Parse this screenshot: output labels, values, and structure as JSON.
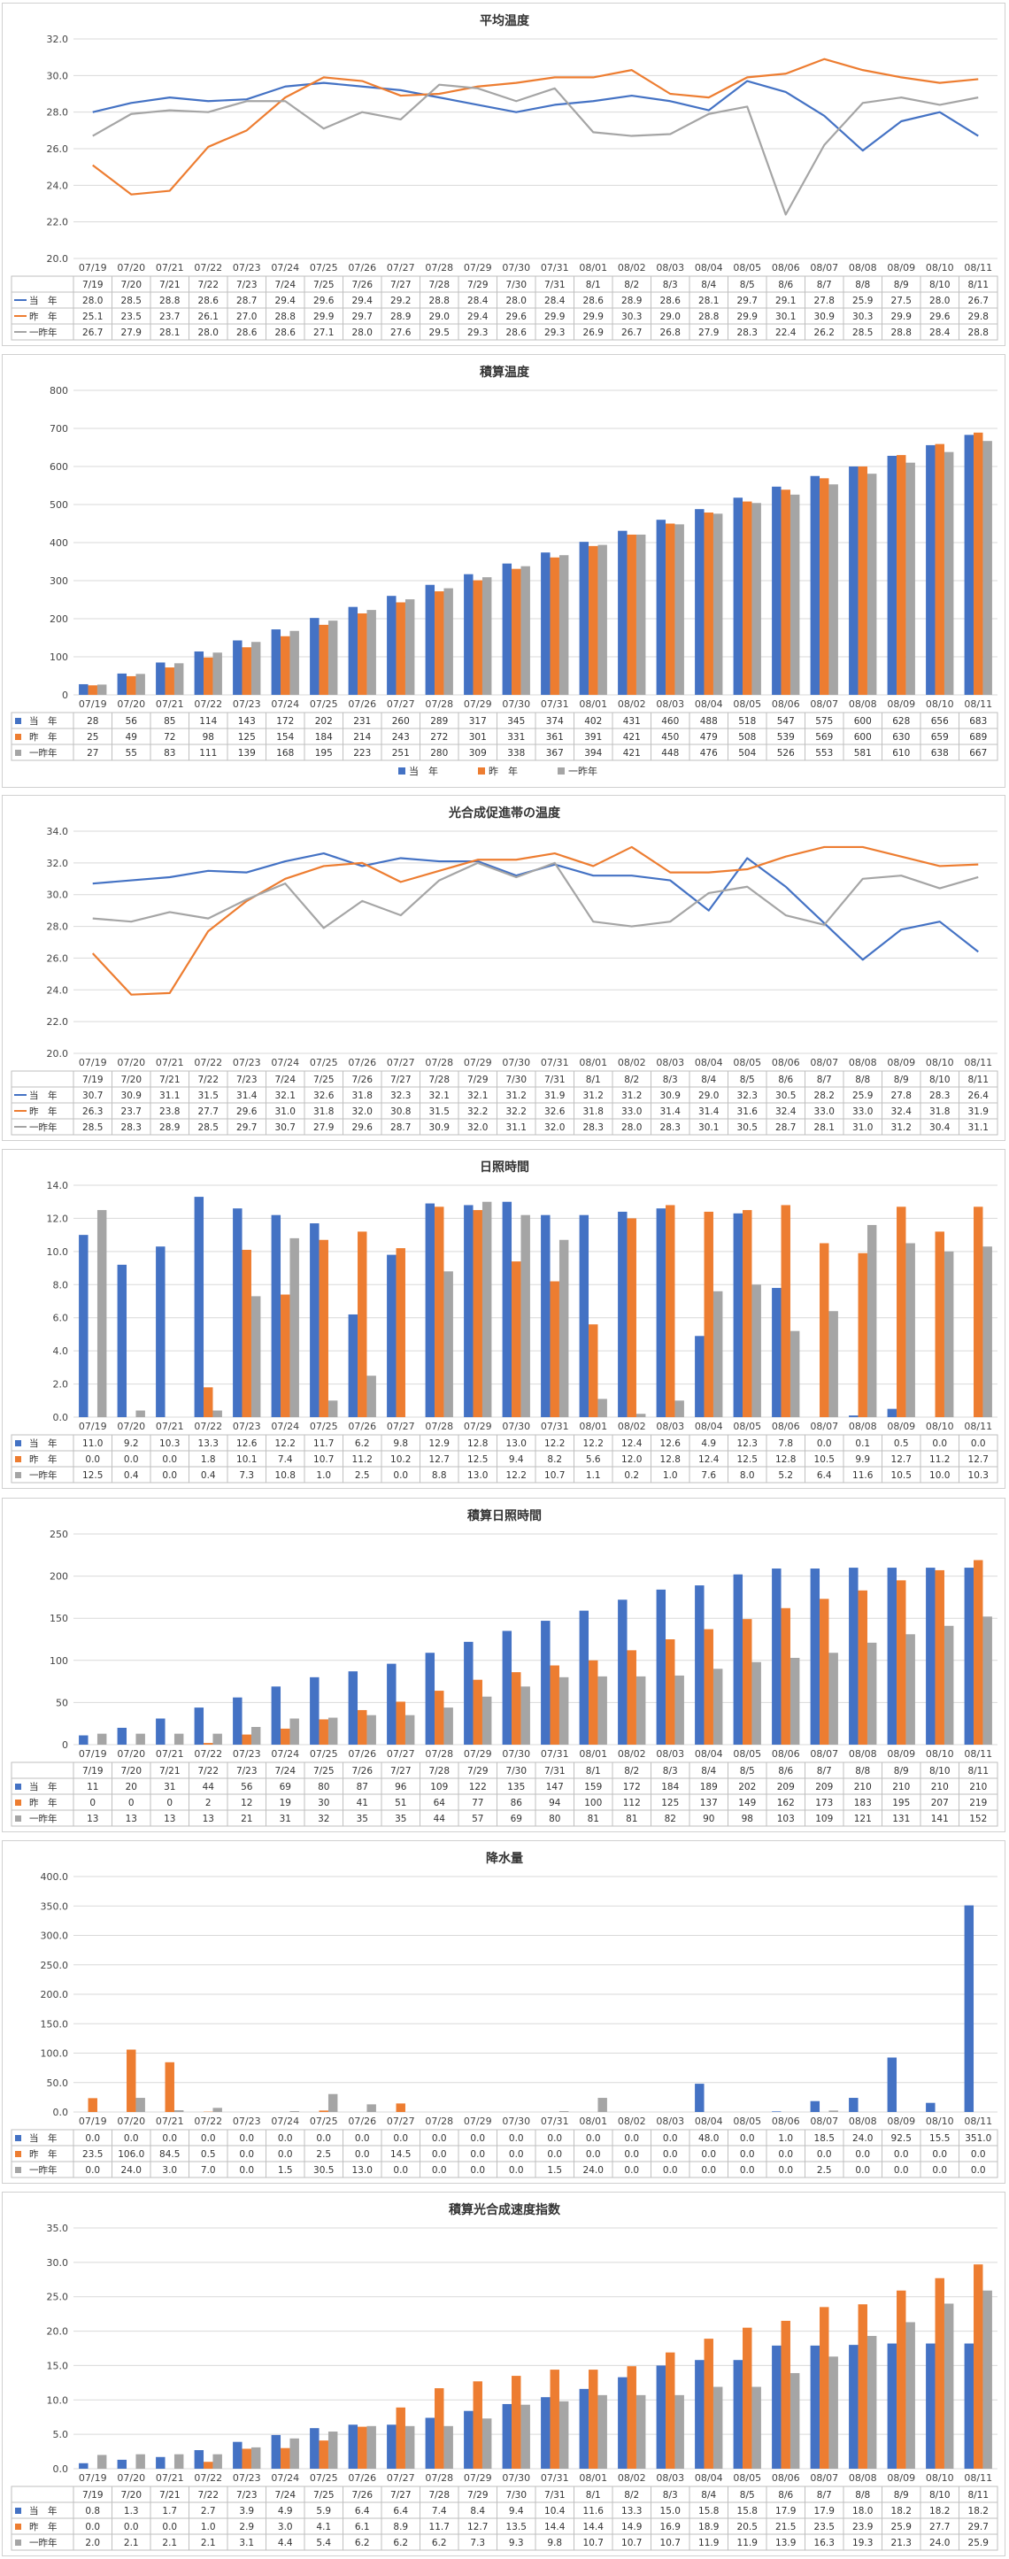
{
  "colors": {
    "current": "#4472C4",
    "last": "#ED7D31",
    "twoyears": "#A5A5A5",
    "grid": "#D9D9D9"
  },
  "legend_names": [
    "当　年",
    "昨　年",
    "一昨年"
  ],
  "axis_dates": [
    "07/19",
    "07/20",
    "07/21",
    "07/22",
    "07/23",
    "07/24",
    "07/25",
    "07/26",
    "07/27",
    "07/28",
    "07/29",
    "07/30",
    "07/31",
    "08/01",
    "08/02",
    "08/03",
    "08/04",
    "08/05",
    "08/06",
    "08/07",
    "08/08",
    "08/09",
    "08/10",
    "08/11"
  ],
  "table_dates": [
    "7/19",
    "7/20",
    "7/21",
    "7/22",
    "7/23",
    "7/24",
    "7/25",
    "7/26",
    "7/27",
    "7/28",
    "7/29",
    "7/30",
    "7/31",
    "8/1",
    "8/2",
    "8/3",
    "8/4",
    "8/5",
    "8/6",
    "8/7",
    "8/8",
    "8/9",
    "8/10",
    "8/11"
  ],
  "chart_data": [
    {
      "id": "avg-temp",
      "type": "line",
      "title": "平均温度",
      "ylim": [
        20,
        32
      ],
      "yticks": [
        20.0,
        22.0,
        24.0,
        26.0,
        28.0,
        30.0,
        32.0
      ],
      "decimals": 1,
      "table_header_row": true,
      "show_bottom_legend": false,
      "series": [
        {
          "name": "当　年",
          "values": [
            28.0,
            28.5,
            28.8,
            28.6,
            28.7,
            29.4,
            29.6,
            29.4,
            29.2,
            28.8,
            28.4,
            28.0,
            28.4,
            28.6,
            28.9,
            28.6,
            28.1,
            29.7,
            29.1,
            27.8,
            25.9,
            27.5,
            28.0,
            26.7
          ]
        },
        {
          "name": "昨　年",
          "values": [
            25.1,
            23.5,
            23.7,
            26.1,
            27.0,
            28.8,
            29.9,
            29.7,
            28.9,
            29.0,
            29.4,
            29.6,
            29.9,
            29.9,
            30.3,
            29.0,
            28.8,
            29.9,
            30.1,
            30.9,
            30.3,
            29.9,
            29.6,
            29.8
          ]
        },
        {
          "name": "一昨年",
          "values": [
            26.7,
            27.9,
            28.1,
            28.0,
            28.6,
            28.6,
            27.1,
            28.0,
            27.6,
            29.5,
            29.3,
            28.6,
            29.3,
            26.9,
            26.7,
            26.8,
            27.9,
            28.3,
            22.4,
            26.2,
            28.5,
            28.8,
            28.4,
            28.8
          ]
        }
      ]
    },
    {
      "id": "cum-temp",
      "type": "bar",
      "title": "積算温度",
      "ylim": [
        0,
        800
      ],
      "yticks": [
        0,
        100,
        200,
        300,
        400,
        500,
        600,
        700,
        800
      ],
      "decimals": 0,
      "table_header_row": false,
      "show_bottom_legend": true,
      "series": [
        {
          "name": "当　年",
          "values": [
            28,
            56,
            85,
            114,
            143,
            172,
            202,
            231,
            260,
            289,
            317,
            345,
            374,
            402,
            431,
            460,
            488,
            518,
            547,
            575,
            600,
            628,
            656,
            683
          ]
        },
        {
          "name": "昨　年",
          "values": [
            25,
            49,
            72,
            98,
            125,
            154,
            184,
            214,
            243,
            272,
            301,
            331,
            361,
            391,
            421,
            450,
            479,
            508,
            539,
            569,
            600,
            630,
            659,
            689
          ]
        },
        {
          "name": "一昨年",
          "values": [
            27,
            55,
            83,
            111,
            139,
            168,
            195,
            223,
            251,
            280,
            309,
            338,
            367,
            394,
            421,
            448,
            476,
            504,
            526,
            553,
            581,
            610,
            638,
            667
          ]
        }
      ]
    },
    {
      "id": "photo-temp",
      "type": "line",
      "title": "光合成促進帯の温度",
      "ylim": [
        20,
        34
      ],
      "yticks": [
        20.0,
        22.0,
        24.0,
        26.0,
        28.0,
        30.0,
        32.0,
        34.0
      ],
      "decimals": 1,
      "table_header_row": true,
      "show_bottom_legend": false,
      "series": [
        {
          "name": "当　年",
          "values": [
            30.7,
            30.9,
            31.1,
            31.5,
            31.4,
            32.1,
            32.6,
            31.8,
            32.3,
            32.1,
            32.1,
            31.2,
            31.9,
            31.2,
            31.2,
            30.9,
            29.0,
            32.3,
            30.5,
            28.2,
            25.9,
            27.8,
            28.3,
            26.4
          ]
        },
        {
          "name": "昨　年",
          "values": [
            26.3,
            23.7,
            23.8,
            27.7,
            29.6,
            31.0,
            31.8,
            32.0,
            30.8,
            31.5,
            32.2,
            32.2,
            32.6,
            31.8,
            33.0,
            31.4,
            31.4,
            31.6,
            32.4,
            33.0,
            33.0,
            32.4,
            31.8,
            31.9
          ]
        },
        {
          "name": "一昨年",
          "values": [
            28.5,
            28.3,
            28.9,
            28.5,
            29.7,
            30.7,
            27.9,
            29.6,
            28.7,
            30.9,
            32.0,
            31.1,
            32.0,
            28.3,
            28.0,
            28.3,
            30.1,
            30.5,
            28.7,
            28.1,
            31.0,
            31.2,
            30.4,
            31.1
          ]
        }
      ]
    },
    {
      "id": "sunshine",
      "type": "bar",
      "title": "日照時間",
      "ylim": [
        0,
        14
      ],
      "yticks": [
        0.0,
        2.0,
        4.0,
        6.0,
        8.0,
        10.0,
        12.0,
        14.0
      ],
      "decimals": 1,
      "table_header_row": false,
      "show_bottom_legend": false,
      "series": [
        {
          "name": "当　年",
          "values": [
            11.0,
            9.2,
            10.3,
            13.3,
            12.6,
            12.2,
            11.7,
            6.2,
            9.8,
            12.9,
            12.8,
            13.0,
            12.2,
            12.2,
            12.4,
            12.6,
            4.9,
            12.3,
            7.8,
            0.0,
            0.1,
            0.5,
            0.0,
            0.0
          ]
        },
        {
          "name": "昨　年",
          "values": [
            0.0,
            0.0,
            0.0,
            1.8,
            10.1,
            7.4,
            10.7,
            11.2,
            10.2,
            12.7,
            12.5,
            9.4,
            8.2,
            5.6,
            12.0,
            12.8,
            12.4,
            12.5,
            12.8,
            10.5,
            9.9,
            12.7,
            11.2,
            12.7
          ]
        },
        {
          "name": "一昨年",
          "values": [
            12.5,
            0.4,
            0.0,
            0.4,
            7.3,
            10.8,
            1.0,
            2.5,
            0.0,
            8.8,
            13.0,
            12.2,
            10.7,
            1.1,
            0.2,
            1.0,
            7.6,
            8.0,
            5.2,
            6.4,
            11.6,
            10.5,
            10.0,
            10.3
          ]
        }
      ]
    },
    {
      "id": "cum-sunshine",
      "type": "bar",
      "title": "積算日照時間",
      "ylim": [
        0,
        250
      ],
      "yticks": [
        0,
        50,
        100,
        150,
        200,
        250
      ],
      "decimals": 0,
      "table_header_row": true,
      "show_bottom_legend": false,
      "series": [
        {
          "name": "当　年",
          "values": [
            11,
            20,
            31,
            44,
            56,
            69,
            80,
            87,
            96,
            109,
            122,
            135,
            147,
            159,
            172,
            184,
            189,
            202,
            209,
            209,
            210,
            210,
            210,
            210
          ]
        },
        {
          "name": "昨　年",
          "values": [
            0,
            0,
            0,
            2,
            12,
            19,
            30,
            41,
            51,
            64,
            77,
            86,
            94,
            100,
            112,
            125,
            137,
            149,
            162,
            173,
            183,
            195,
            207,
            219
          ]
        },
        {
          "name": "一昨年",
          "values": [
            13,
            13,
            13,
            13,
            21,
            31,
            32,
            35,
            35,
            44,
            57,
            69,
            80,
            81,
            81,
            82,
            90,
            98,
            103,
            109,
            121,
            131,
            141,
            152
          ]
        }
      ]
    },
    {
      "id": "rain",
      "type": "bar",
      "title": "降水量",
      "ylim": [
        0,
        400
      ],
      "yticks": [
        0.0,
        50.0,
        100.0,
        150.0,
        200.0,
        250.0,
        300.0,
        350.0,
        400.0
      ],
      "decimals": 1,
      "table_header_row": false,
      "show_bottom_legend": false,
      "series": [
        {
          "name": "当　年",
          "values": [
            0.0,
            0.0,
            0.0,
            0.0,
            0.0,
            0.0,
            0.0,
            0.0,
            0.0,
            0.0,
            0.0,
            0.0,
            0.0,
            0.0,
            0.0,
            0.0,
            48.0,
            0.0,
            1.0,
            18.5,
            24.0,
            92.5,
            15.5,
            351.0
          ]
        },
        {
          "name": "昨　年",
          "values": [
            23.5,
            106.0,
            84.5,
            0.5,
            0.0,
            0.0,
            2.5,
            0.0,
            14.5,
            0.0,
            0.0,
            0.0,
            0.0,
            0.0,
            0.0,
            0.0,
            0.0,
            0.0,
            0.0,
            0.0,
            0.0,
            0.0,
            0.0,
            0.0
          ]
        },
        {
          "name": "一昨年",
          "values": [
            0.0,
            24.0,
            3.0,
            7.0,
            0.0,
            1.5,
            30.5,
            13.0,
            0.0,
            0.0,
            0.0,
            0.0,
            1.5,
            24.0,
            0.0,
            0.0,
            0.0,
            0.0,
            0.0,
            2.5,
            0.0,
            0.0,
            0.0,
            0.0
          ]
        }
      ]
    },
    {
      "id": "cum-photo",
      "type": "bar",
      "title": "積算光合成速度指数",
      "ylim": [
        0,
        35
      ],
      "yticks": [
        0.0,
        5.0,
        10.0,
        15.0,
        20.0,
        25.0,
        30.0,
        35.0
      ],
      "decimals": 1,
      "table_header_row": true,
      "show_bottom_legend": false,
      "series": [
        {
          "name": "当　年",
          "values": [
            0.8,
            1.3,
            1.7,
            2.7,
            3.9,
            4.9,
            5.9,
            6.4,
            6.4,
            7.4,
            8.4,
            9.4,
            10.4,
            11.6,
            13.3,
            15.0,
            15.8,
            15.8,
            17.9,
            17.9,
            18.0,
            18.2,
            18.2,
            18.2
          ]
        },
        {
          "name": "昨　年",
          "values": [
            0.0,
            0.0,
            0.0,
            1.0,
            2.9,
            3.0,
            4.1,
            6.1,
            8.9,
            11.7,
            12.7,
            13.5,
            14.4,
            14.4,
            14.9,
            16.9,
            18.9,
            20.5,
            21.5,
            23.5,
            23.9,
            25.9,
            27.7,
            29.7
          ]
        },
        {
          "name": "一昨年",
          "values": [
            2.0,
            2.1,
            2.1,
            2.1,
            3.1,
            4.4,
            5.4,
            6.2,
            6.2,
            6.2,
            7.3,
            9.3,
            9.8,
            10.7,
            10.7,
            10.7,
            11.9,
            11.9,
            13.9,
            16.3,
            19.3,
            21.3,
            24.0,
            25.9
          ]
        }
      ]
    }
  ]
}
